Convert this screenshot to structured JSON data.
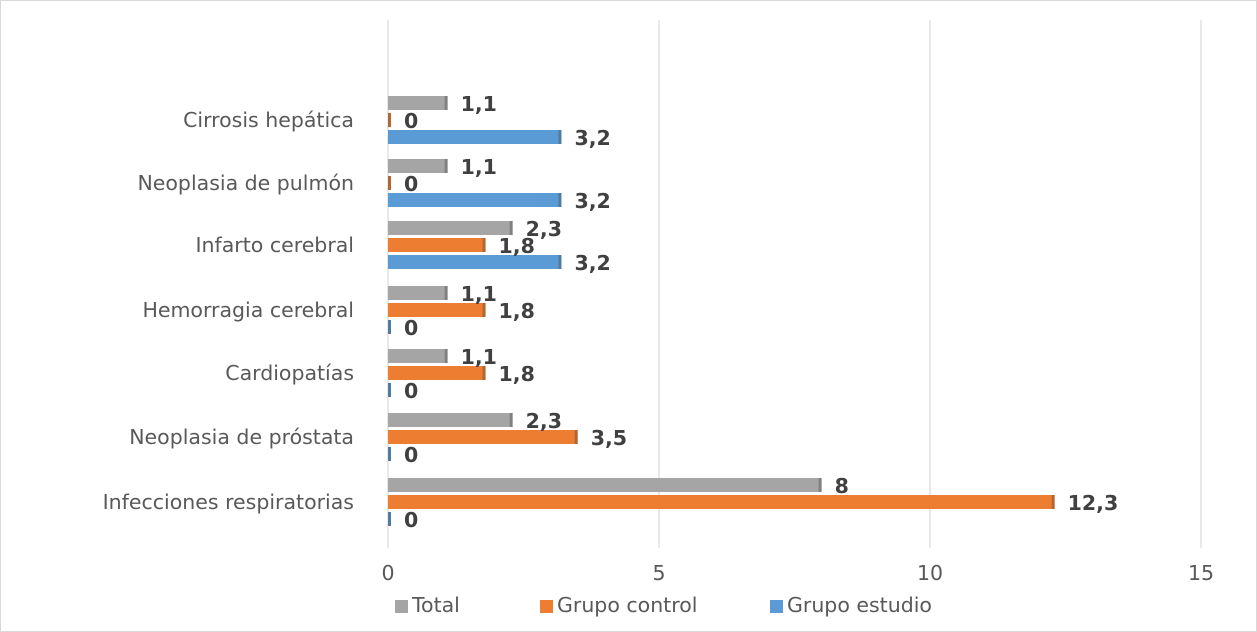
{
  "chart_data": {
    "type": "bar",
    "orientation": "horizontal",
    "categories": [
      "Cirrosis hepática",
      "Neoplasia de pulmón",
      "Infarto cerebral",
      "Hemorragia cerebral",
      "Cardiopatías",
      "Neoplasia de próstata",
      "Infecciones respiratorias"
    ],
    "series": [
      {
        "name": "Total",
        "color": "#a5a5a5",
        "values": [
          1.1,
          1.1,
          2.3,
          1.1,
          1.1,
          2.3,
          8
        ],
        "labels": [
          "1,1",
          "1,1",
          "2,3",
          "1,1",
          "1,1",
          "2,3",
          "8"
        ]
      },
      {
        "name": "Grupo control",
        "color": "#ed7d31",
        "values": [
          0,
          0,
          1.8,
          1.8,
          1.8,
          3.5,
          12.3
        ],
        "labels": [
          "0",
          "0",
          "1,8",
          "1,8",
          "1,8",
          "3,5",
          "12,3"
        ]
      },
      {
        "name": "Grupo estudio",
        "color": "#5b9bd5",
        "values": [
          3.2,
          3.2,
          3.2,
          0,
          0,
          0,
          0
        ],
        "labels": [
          "3,2",
          "3,2",
          "3,2",
          "0",
          "0",
          "0",
          "0"
        ]
      }
    ],
    "xlim": [
      0,
      15
    ],
    "xticks": [
      0,
      5,
      10,
      15
    ],
    "xtick_labels": [
      "0",
      "5",
      "10",
      "15"
    ],
    "grid": "vertical",
    "legend_position": "bottom",
    "title": "",
    "xlabel": "",
    "ylabel": ""
  }
}
